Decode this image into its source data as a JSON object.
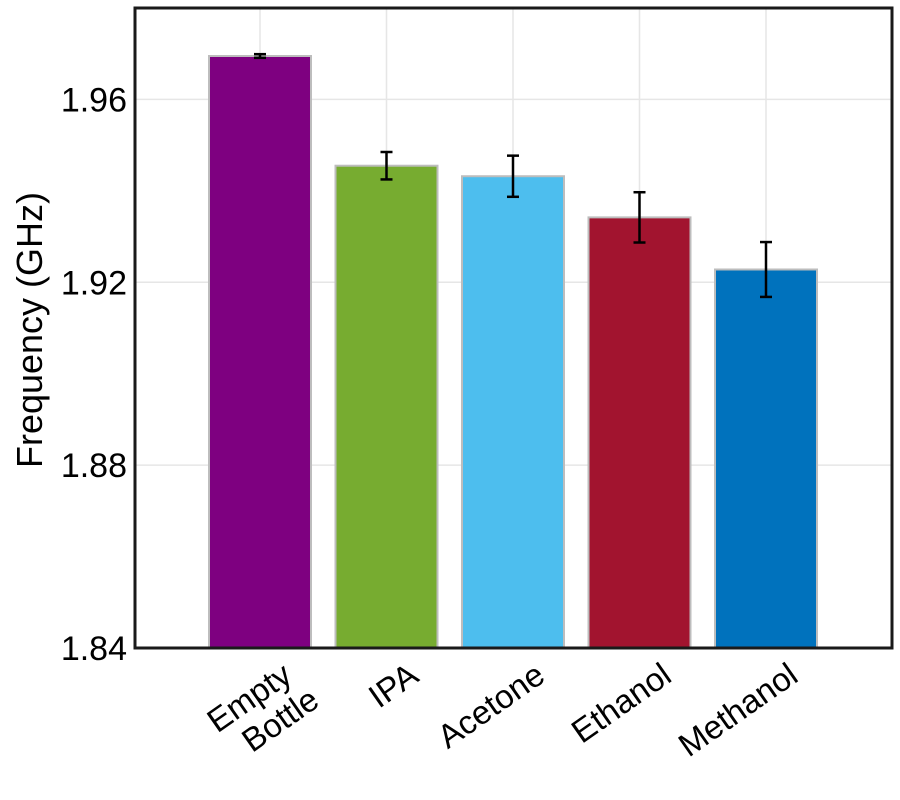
{
  "chart_data": {
    "type": "bar",
    "title": "",
    "xlabel": "",
    "ylabel": "Frequency (GHz)",
    "ylim": [
      1.84,
      1.98
    ],
    "yticks": [
      1.84,
      1.88,
      1.92,
      1.96
    ],
    "ytick_labels": [
      "1.84",
      "1.88",
      "1.92",
      "1.96"
    ],
    "grid": true,
    "legend": "none",
    "categories": [
      [
        "Empty",
        "Bottle"
      ],
      [
        "IPA"
      ],
      [
        "Acetone"
      ],
      [
        "Ethanol"
      ],
      [
        "Methanol"
      ]
    ],
    "values": [
      1.9695,
      1.9455,
      1.9432,
      1.9342,
      1.9228
    ],
    "errors": [
      0.0004,
      0.003,
      0.0045,
      0.0055,
      0.006
    ],
    "colors": [
      "#7e0080",
      "#77ac30",
      "#4dbeee",
      "#a2142f",
      "#0072bd"
    ]
  }
}
